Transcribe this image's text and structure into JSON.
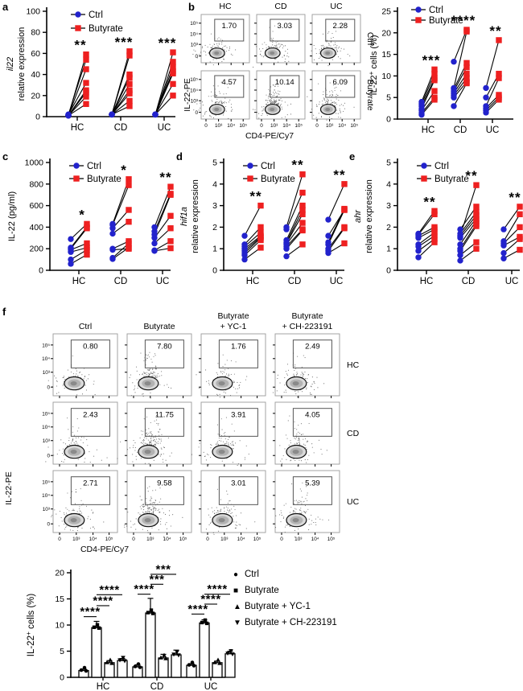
{
  "colors": {
    "ctrl": "#2222cc",
    "butyrate": "#ee2020",
    "black": "#000000"
  },
  "panel_letters": {
    "a": "a",
    "b": "b",
    "c": "c",
    "d": "d",
    "e": "e",
    "f": "f"
  },
  "chart_data": {
    "a": {
      "type": "paired-scatter",
      "ylabel_gene": "il22",
      "ylabel_text": "relative expression",
      "ylim": [
        0,
        100
      ],
      "yticks": [
        0,
        20,
        40,
        60,
        80,
        100
      ],
      "categories": [
        "HC",
        "CD",
        "UC"
      ],
      "significance": [
        "**",
        "***",
        "***"
      ],
      "legend": [
        "Ctrl",
        "Butyrate"
      ],
      "pairs": [
        [
          [
            1,
            12
          ],
          [
            1,
            19
          ],
          [
            1,
            23
          ],
          [
            1,
            25
          ],
          [
            2,
            32
          ],
          [
            1,
            45
          ],
          [
            2,
            54
          ],
          [
            1,
            59
          ]
        ],
        [
          [
            2,
            10
          ],
          [
            2,
            15
          ],
          [
            2,
            22
          ],
          [
            2,
            25
          ],
          [
            2,
            31
          ],
          [
            2,
            37
          ],
          [
            2,
            40
          ],
          [
            2,
            58
          ],
          [
            2,
            62
          ]
        ],
        [
          [
            2,
            20
          ],
          [
            2,
            31
          ],
          [
            2,
            41
          ],
          [
            2,
            43
          ],
          [
            2,
            47
          ],
          [
            2,
            52
          ],
          [
            2,
            61
          ]
        ]
      ]
    },
    "b_flow": {
      "type": "flow-grid",
      "col_headers": [
        [
          "HC"
        ],
        [
          "CD"
        ],
        [
          "UC"
        ]
      ],
      "row_labels": [
        "Ctrl",
        "Butyrate"
      ],
      "row_labels_rotated": true,
      "gate_values": [
        [
          "1.70",
          "3.03",
          "2.28"
        ],
        [
          "4.57",
          "10.14",
          "6.09"
        ]
      ],
      "xticks": [
        "0",
        "10³",
        "10⁴",
        "10⁵"
      ],
      "yticks": [
        "0",
        "10³",
        "10⁴",
        "10⁵"
      ],
      "xlabel": "CD4-PE/Cy7",
      "ylabel": "IL-22-PE"
    },
    "b_pct": {
      "type": "paired-scatter",
      "ylabel_parts": [
        [
          "IL-22",
          0
        ],
        [
          "+",
          1
        ],
        [
          " cells (%)",
          0
        ]
      ],
      "ylim": [
        0,
        25
      ],
      "yticks": [
        0,
        5,
        10,
        15,
        20,
        25
      ],
      "categories": [
        "HC",
        "CD",
        "UC"
      ],
      "significance": [
        "***",
        "****",
        "**"
      ],
      "legend": [
        "Ctrl",
        "Butyrate"
      ],
      "pairs": [
        [
          [
            1,
            4.5
          ],
          [
            1.4,
            5
          ],
          [
            2,
            6.5
          ],
          [
            2.4,
            9
          ],
          [
            3,
            9.5
          ],
          [
            3.5,
            10.5
          ],
          [
            4,
            11.5
          ]
        ],
        [
          [
            3,
            8.3
          ],
          [
            5,
            8.6
          ],
          [
            5.5,
            9.5
          ],
          [
            6,
            10.5
          ],
          [
            6.5,
            12
          ],
          [
            7,
            13
          ],
          [
            7.2,
            20.3
          ],
          [
            13.3,
            20.7
          ]
        ],
        [
          [
            1.5,
            4.5
          ],
          [
            2,
            5
          ],
          [
            2.5,
            5.6
          ],
          [
            3,
            9.5
          ],
          [
            5,
            10.5
          ],
          [
            7.2,
            18.3
          ]
        ]
      ]
    },
    "c": {
      "type": "paired-scatter",
      "ylabel_parts": [
        [
          "IL-22 (pg/ml)",
          0
        ]
      ],
      "ylim": [
        0,
        1000
      ],
      "yticks": [
        0,
        200,
        400,
        600,
        800,
        1000
      ],
      "categories": [
        "HC",
        "CD",
        "UC"
      ],
      "significance": [
        "*",
        "*",
        "**"
      ],
      "legend": [
        "Ctrl",
        "Butyrate"
      ],
      "pairs": [
        [
          [
            60,
            145
          ],
          [
            100,
            190
          ],
          [
            170,
            210
          ],
          [
            190,
            250
          ],
          [
            200,
            390
          ],
          [
            210,
            400
          ],
          [
            290,
            430
          ]
        ],
        [
          [
            105,
            210
          ],
          [
            115,
            250
          ],
          [
            190,
            200
          ],
          [
            200,
            270
          ],
          [
            340,
            450
          ],
          [
            390,
            560
          ],
          [
            420,
            790
          ],
          [
            430,
            845
          ]
        ],
        [
          [
            180,
            205
          ],
          [
            185,
            270
          ],
          [
            250,
            390
          ],
          [
            300,
            505
          ],
          [
            330,
            700
          ],
          [
            360,
            710
          ],
          [
            400,
            775
          ]
        ]
      ]
    },
    "d": {
      "type": "paired-scatter",
      "ylabel_gene": "hif1a",
      "ylabel_text": "relative expression",
      "ylim": [
        0,
        5
      ],
      "yticks": [
        0,
        1,
        2,
        3,
        4,
        5
      ],
      "categories": [
        "HC",
        "CD",
        "UC"
      ],
      "significance": [
        "**",
        "**",
        "**"
      ],
      "legend": [
        "Ctrl",
        "Butyrate"
      ],
      "pairs": [
        [
          [
            0.5,
            1.05
          ],
          [
            0.7,
            1.4
          ],
          [
            0.8,
            1.5
          ],
          [
            0.9,
            1.55
          ],
          [
            1.0,
            1.6
          ],
          [
            1.1,
            1.75
          ],
          [
            1.2,
            2.0
          ],
          [
            1.6,
            3.0
          ]
        ],
        [
          [
            0.65,
            1.2
          ],
          [
            1.0,
            1.85
          ],
          [
            1.1,
            1.9
          ],
          [
            1.2,
            2.2
          ],
          [
            1.25,
            2.6
          ],
          [
            1.3,
            2.8
          ],
          [
            1.4,
            3.0
          ],
          [
            1.9,
            3.6
          ],
          [
            2.0,
            4.45
          ]
        ],
        [
          [
            0.8,
            1.25
          ],
          [
            0.9,
            1.95
          ],
          [
            1.0,
            2.0
          ],
          [
            1.2,
            2.8
          ],
          [
            1.3,
            2.85
          ],
          [
            1.6,
            2.8
          ],
          [
            2.35,
            4.0
          ]
        ]
      ]
    },
    "e": {
      "type": "paired-scatter",
      "ylabel_gene": "ahr",
      "ylabel_text": "relative expression",
      "ylim": [
        0,
        5
      ],
      "yticks": [
        0,
        1,
        2,
        3,
        4,
        5
      ],
      "categories": [
        "HC",
        "CD",
        "UC"
      ],
      "significance": [
        "**",
        "**",
        "**"
      ],
      "legend": [
        "Ctrl",
        "Butyrate"
      ],
      "pairs": [
        [
          [
            0.6,
            1.3
          ],
          [
            0.9,
            1.45
          ],
          [
            1.1,
            1.6
          ],
          [
            1.2,
            1.75
          ],
          [
            1.5,
            1.9
          ],
          [
            1.6,
            2.0
          ],
          [
            1.65,
            2.6
          ],
          [
            1.7,
            2.75
          ]
        ],
        [
          [
            0.45,
            1.0
          ],
          [
            0.7,
            1.3
          ],
          [
            0.9,
            2.05
          ],
          [
            1.0,
            2.15
          ],
          [
            1.2,
            2.3
          ],
          [
            1.5,
            2.4
          ],
          [
            1.6,
            2.55
          ],
          [
            1.7,
            2.7
          ],
          [
            1.9,
            2.95
          ],
          [
            1.6,
            3.95
          ]
        ],
        [
          [
            0.55,
            0.95
          ],
          [
            0.8,
            1.45
          ],
          [
            1.15,
            1.55
          ],
          [
            1.25,
            2.0
          ],
          [
            1.35,
            2.6
          ],
          [
            1.9,
            2.95
          ]
        ]
      ]
    },
    "f_flow": {
      "type": "flow-grid",
      "col_headers": [
        [
          "Ctrl"
        ],
        [
          "Butyrate"
        ],
        [
          "Butyrate",
          "+ YC-1"
        ],
        [
          "Butyrate",
          "+ CH-223191"
        ]
      ],
      "row_labels": [
        "HC",
        "CD",
        "UC"
      ],
      "row_labels_rotated": false,
      "gate_values": [
        [
          "0.80",
          "7.80",
          "1.76",
          "2.49"
        ],
        [
          "2.43",
          "11.75",
          "3.91",
          "4.05"
        ],
        [
          "2.71",
          "9.58",
          "3.01",
          "5.39"
        ]
      ],
      "xticks": [
        "0",
        "10³",
        "10⁴",
        "10⁵"
      ],
      "yticks": [
        "0",
        "10³",
        "10⁴",
        "10⁵"
      ],
      "xlabel": "CD4-PE/Cy7",
      "ylabel": "IL-22-PE"
    },
    "f_bars": {
      "type": "bar",
      "ylabel_parts": [
        [
          "IL-22",
          0
        ],
        [
          "+",
          1
        ],
        [
          " cells (%)",
          0
        ]
      ],
      "ylim": [
        0,
        20
      ],
      "yticks": [
        0,
        5,
        10,
        15,
        20
      ],
      "categories": [
        "HC",
        "CD",
        "UC"
      ],
      "series": [
        "Ctrl",
        "Butyrate",
        "Butyrate + YC-1",
        "Butyrate + CH-223191"
      ],
      "values": [
        [
          1.3,
          9.5,
          2.8,
          3.2
        ],
        [
          2.0,
          12.3,
          3.7,
          4.3
        ],
        [
          2.3,
          10.4,
          2.8,
          4.5
        ]
      ],
      "errors": [
        [
          0.3,
          1.2,
          0.4,
          0.4
        ],
        [
          0.4,
          2.8,
          0.7,
          0.9
        ],
        [
          0.3,
          0.6,
          0.3,
          0.5
        ]
      ],
      "significance": [
        {
          "group": 0,
          "bars": [
            0,
            1
          ],
          "y": 11.6,
          "stars": "****"
        },
        {
          "group": 0,
          "bars": [
            1,
            2
          ],
          "y": 13.7,
          "stars": "****"
        },
        {
          "group": 0,
          "bars": [
            1,
            3
          ],
          "y": 15.8,
          "stars": "****"
        },
        {
          "group": 1,
          "bars": [
            0,
            1
          ],
          "y": 15.9,
          "stars": "****"
        },
        {
          "group": 1,
          "bars": [
            1,
            2
          ],
          "y": 17.8,
          "stars": "***"
        },
        {
          "group": 1,
          "bars": [
            1,
            3
          ],
          "y": 19.7,
          "stars": "***"
        },
        {
          "group": 2,
          "bars": [
            0,
            1
          ],
          "y": 12.1,
          "stars": "****"
        },
        {
          "group": 2,
          "bars": [
            1,
            2
          ],
          "y": 14.0,
          "stars": "****"
        },
        {
          "group": 2,
          "bars": [
            1,
            3
          ],
          "y": 15.9,
          "stars": "****"
        }
      ],
      "legend": [
        {
          "marker": "●",
          "label": "Ctrl"
        },
        {
          "marker": "■",
          "label": "Butyrate"
        },
        {
          "marker": "▲",
          "label": "Butyrate + YC-1"
        },
        {
          "marker": "▼",
          "label": "Butyrate + CH-223191"
        }
      ]
    }
  }
}
